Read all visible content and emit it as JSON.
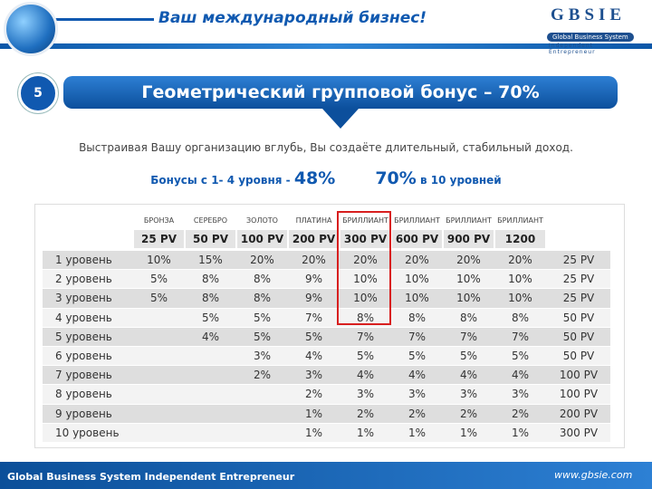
{
  "header": {
    "title": "Ваш международный бизнес!",
    "logo": {
      "brand": "GBSIE",
      "line1": "Global Business System",
      "line2": "Independent Entrepreneur"
    }
  },
  "slide_number": "5",
  "heading": "Геометрический групповой бонус – 70%",
  "description": "Выстраивая Вашу организацию вглубь, Вы создаёте длительный, стабильный доход.",
  "bonus": {
    "prefix": "Бонусы с 1- 4 уровня - ",
    "first": "48%",
    "second": "70%",
    "suffix": " в 10 уровней"
  },
  "table": {
    "columns": [
      {
        "rank": "БРОНЗА",
        "pv": "25 PV"
      },
      {
        "rank": "СЕРЕБРО",
        "pv": "50 PV"
      },
      {
        "rank": "ЗОЛОТО",
        "pv": "100 PV"
      },
      {
        "rank": "ПЛАТИНА",
        "pv": "200 PV"
      },
      {
        "rank": "БРИЛЛИАНТ",
        "pv": "300 PV"
      },
      {
        "rank": "БРИЛЛИАНТ",
        "pv": "600 PV"
      },
      {
        "rank": "БРИЛЛИАНТ",
        "pv": "900 PV"
      },
      {
        "rank": "БРИЛЛИАНТ",
        "pv": "1200 PV"
      }
    ],
    "rows": [
      [
        "1 уровень",
        "10%",
        "15%",
        "20%",
        "20%",
        "20%",
        "20%",
        "20%",
        "20%",
        "25 PV"
      ],
      [
        "2 уровень",
        "5%",
        "8%",
        "8%",
        "9%",
        "10%",
        "10%",
        "10%",
        "10%",
        "25 PV"
      ],
      [
        "3 уровень",
        "5%",
        "8%",
        "8%",
        "9%",
        "10%",
        "10%",
        "10%",
        "10%",
        "25 PV"
      ],
      [
        "4 уровень",
        null,
        "5%",
        "5%",
        "7%",
        "8%",
        "8%",
        "8%",
        "8%",
        "50 PV"
      ],
      [
        "5 уровень",
        null,
        "4%",
        "5%",
        "5%",
        "7%",
        "7%",
        "7%",
        "7%",
        "50 PV"
      ],
      [
        "6 уровень",
        null,
        null,
        "3%",
        "4%",
        "5%",
        "5%",
        "5%",
        "5%",
        "50 PV"
      ],
      [
        "7 уровень",
        null,
        null,
        "2%",
        "3%",
        "4%",
        "4%",
        "4%",
        "4%",
        "100 PV"
      ],
      [
        "8 уровень",
        null,
        null,
        null,
        "2%",
        "3%",
        "3%",
        "3%",
        "3%",
        "100 PV"
      ],
      [
        "9 уровень",
        null,
        null,
        null,
        "1%",
        "2%",
        "2%",
        "2%",
        "2%",
        "200 PV"
      ],
      [
        "10 уровень",
        null,
        null,
        null,
        "1%",
        "1%",
        "1%",
        "1%",
        "1%",
        "300 PV"
      ]
    ]
  },
  "footer": {
    "left": "Global Business System  Independent Entrepreneur",
    "right": "www.gbsie.com"
  }
}
